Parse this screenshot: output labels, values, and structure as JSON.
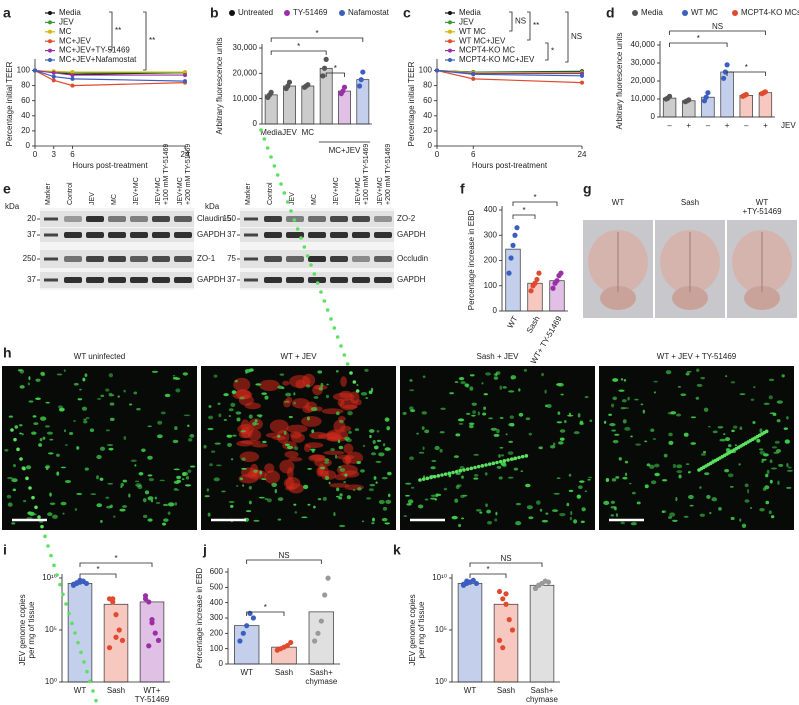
{
  "chart_data": [
    {
      "label": "a",
      "type": "line",
      "x": [
        0,
        3,
        6,
        24
      ],
      "xlim": [
        0,
        24
      ],
      "xticks": [
        0,
        3,
        6,
        24
      ],
      "ylim": [
        0,
        110
      ],
      "yticks": [
        0,
        20,
        40,
        60,
        80,
        100
      ],
      "xlabel": "Hours post-treatment",
      "ylabel": "Percentage initial TEER",
      "series": [
        {
          "name": "Media",
          "color": "#111111",
          "values": [
            100,
            98,
            95,
            97
          ]
        },
        {
          "name": "JEV",
          "color": "#3a9a3a",
          "values": [
            100,
            98,
            97,
            97
          ]
        },
        {
          "name": "MC",
          "color": "#d4b800",
          "values": [
            100,
            99,
            98,
            98
          ]
        },
        {
          "name": "MC+JEV",
          "color": "#e04a2f",
          "values": [
            100,
            87,
            80,
            84
          ]
        },
        {
          "name": "MC+JEV+TY-51469",
          "color": "#9b2fa8",
          "values": [
            100,
            97,
            94,
            94
          ]
        },
        {
          "name": "MC+JEV+Nafamostat",
          "color": "#3b5fc0",
          "values": [
            100,
            92,
            89,
            86
          ]
        }
      ],
      "annotations": [
        "**",
        "**"
      ]
    },
    {
      "label": "b",
      "type": "bar",
      "categories": [
        "Media",
        "JEV",
        "MC",
        null,
        null,
        null
      ],
      "group_label": "MC+JEV",
      "values": [
        11500,
        15000,
        15000,
        22000,
        13000,
        17500
      ],
      "points": [
        [
          10500,
          11500,
          12500
        ],
        [
          14000,
          15000,
          16500
        ],
        [
          14500,
          15000,
          15500
        ],
        [
          19000,
          22000,
          25500
        ],
        [
          12000,
          13000,
          14500
        ],
        [
          15000,
          17500,
          20500
        ]
      ],
      "colors": [
        "#555555",
        "#555555",
        "#555555",
        "#555555",
        "#9b2fa8",
        "#3b5fc0"
      ],
      "ylim": [
        0,
        30000
      ],
      "yticks": [
        0,
        {
          "value": 10000,
          "label": "10,000"
        },
        {
          "value": 20000,
          "label": "20,000"
        },
        {
          "value": 30000,
          "label": "30,000"
        }
      ],
      "ylabel": "Arbitrary fluorescence units",
      "legend": [
        {
          "name": "Untreated",
          "color": "#111111"
        },
        {
          "name": "TY-51469",
          "color": "#9b2fa8"
        },
        {
          "name": "Nafamostat",
          "color": "#3b5fc0"
        }
      ],
      "annotations": [
        "*",
        "*",
        "*"
      ]
    },
    {
      "label": "c",
      "type": "line",
      "x": [
        0,
        6,
        24
      ],
      "xlim": [
        0,
        24
      ],
      "xticks": [
        0,
        6,
        24
      ],
      "ylim": [
        0,
        110
      ],
      "yticks": [
        0,
        20,
        40,
        60,
        80,
        100
      ],
      "xlabel": "Hours post-treatment",
      "ylabel": "Percentage initial TEER",
      "series": [
        {
          "name": "Media",
          "color": "#111111",
          "values": [
            100,
            98,
            99
          ]
        },
        {
          "name": "JEV",
          "color": "#3a9a3a",
          "values": [
            100,
            98,
            98
          ]
        },
        {
          "name": "WT MC",
          "color": "#d4b800",
          "values": [
            100,
            97,
            97
          ]
        },
        {
          "name": "WT MC+JEV",
          "color": "#e04a2f",
          "values": [
            100,
            89,
            84
          ]
        },
        {
          "name": "MCPT4-KO MC",
          "color": "#9b2fa8",
          "values": [
            100,
            96,
            96
          ]
        },
        {
          "name": "MCPT4-KO MC+JEV",
          "color": "#3b5fc0",
          "values": [
            100,
            95,
            93
          ]
        }
      ],
      "annotations": [
        "NS",
        "**",
        "NS",
        "*"
      ]
    },
    {
      "label": "d",
      "type": "bar",
      "categories": [
        "–",
        "+",
        "–",
        "+",
        "–",
        "+"
      ],
      "x_label": "JEV",
      "values": [
        10500,
        9000,
        11000,
        25000,
        12000,
        13500
      ],
      "points": [
        [
          10000,
          10500,
          11500
        ],
        [
          8500,
          9000,
          9500
        ],
        [
          9000,
          11000,
          13500
        ],
        [
          21500,
          25000,
          29000
        ],
        [
          11500,
          12000,
          12500
        ],
        [
          13000,
          13500,
          14000
        ]
      ],
      "colors": [
        "#555555",
        "#555555",
        "#3b5fc0",
        "#3b5fc0",
        "#e04a2f",
        "#e04a2f"
      ],
      "ylim": [
        0,
        40000
      ],
      "yticks": [
        0,
        {
          "value": 10000,
          "label": "10,000"
        },
        {
          "value": 20000,
          "label": "20,000"
        },
        {
          "value": 30000,
          "label": "30,000"
        },
        {
          "value": 40000,
          "label": "40,000"
        }
      ],
      "ylabel": "Arbitrary fluorescence units",
      "legend": [
        {
          "name": "Media",
          "color": "#555555"
        },
        {
          "name": "WT MC",
          "color": "#3b5fc0"
        },
        {
          "name": "MCPT4-KO MCs",
          "color": "#e04a2f"
        }
      ],
      "annotations": [
        "NS",
        "*",
        "*"
      ]
    },
    {
      "label": "f",
      "type": "bar",
      "categories": [
        "WT",
        "Sash",
        "WT+ TY-51469"
      ],
      "values": [
        245,
        110,
        120
      ],
      "points": [
        [
          150,
          210,
          260,
          300,
          330
        ],
        [
          80,
          100,
          110,
          125,
          150
        ],
        [
          90,
          110,
          120,
          140,
          150
        ]
      ],
      "colors": [
        "#3b5fc0",
        "#e04a2f",
        "#9b2fa8"
      ],
      "ylim": [
        0,
        400
      ],
      "yticks": [
        0,
        100,
        200,
        300,
        400
      ],
      "ylabel": "Percentage increase in EBD",
      "annotations": [
        "*",
        "*"
      ]
    },
    {
      "label": "i",
      "type": "bar",
      "log": true,
      "categories": [
        "WT",
        "Sash",
        "WT+ TY-51469"
      ],
      "values": [
        3000000000,
        30000000,
        50000000
      ],
      "points": [
        [
          2000000000,
          3000000000,
          4000000000,
          5000000000,
          3000000000,
          2500000000,
          3500000000,
          6000000000
        ],
        [
          100000000,
          50000000,
          3000000,
          100000,
          10000,
          2000,
          100000000,
          20000
        ],
        [
          100000000,
          50000000,
          1000000,
          50000,
          10000,
          200000000,
          3000,
          500000
        ]
      ],
      "colors": [
        "#3b5fc0",
        "#e04a2f",
        "#9b2fa8"
      ],
      "ylim": [
        1,
        10000000000
      ],
      "yticks": [
        {
          "value": 1,
          "label": "10⁰"
        },
        {
          "value": 100000,
          "label": "10⁵"
        },
        {
          "value": 10000000000,
          "label": "10¹⁰"
        }
      ],
      "ylabel": "JEV genome copies per mg of tissue",
      "annotations": [
        "*",
        "*"
      ]
    },
    {
      "label": "j",
      "type": "bar",
      "categories": [
        "WT",
        "Sash",
        "Sash+ chymase"
      ],
      "values": [
        250,
        110,
        340
      ],
      "points": [
        [
          150,
          200,
          250,
          330,
          300
        ],
        [
          90,
          100,
          110,
          120,
          140
        ],
        [
          150,
          200,
          280,
          450,
          560
        ]
      ],
      "colors": [
        "#3b5fc0",
        "#e04a2f",
        "#999999"
      ],
      "ylim": [
        0,
        600
      ],
      "yticks": [
        0,
        100,
        200,
        300,
        400,
        500,
        600
      ],
      "ylabel": "Percentage increase in EBD",
      "annotations": [
        "NS",
        "*"
      ]
    },
    {
      "label": "k",
      "type": "bar",
      "log": true,
      "categories": [
        "WT",
        "Sash",
        "Sash+ chymase"
      ],
      "values": [
        3000000000,
        30000000,
        2000000000
      ],
      "points": [
        [
          2000000000,
          3000000000,
          4000000000,
          6000000000,
          3000000000,
          2500000000,
          5000000000,
          4000000000
        ],
        [
          500000000,
          100000000,
          30000000,
          1000000,
          100000,
          10000,
          2000,
          300000000
        ],
        [
          1000000000,
          2000000000,
          3000000000,
          5000000000,
          4000000000,
          1000000000,
          2000000000
        ]
      ],
      "colors": [
        "#3b5fc0",
        "#e04a2f",
        "#999999"
      ],
      "ylim": [
        1,
        10000000000
      ],
      "yticks": [
        {
          "value": 1,
          "label": "10⁰"
        },
        {
          "value": 100000,
          "label": "10⁵"
        },
        {
          "value": 10000000000,
          "label": "10¹⁰"
        }
      ],
      "ylabel": "JEV genome copies per mg of tissue",
      "annotations": [
        "NS",
        "*"
      ]
    }
  ],
  "blots": {
    "label": "e",
    "unit": "kDa",
    "lanes": [
      "Marker",
      "Control",
      "JEV",
      "MC",
      "JEV+MC",
      "JEV+MC +100 mM TY-51469",
      "JEV+MC +200 mM TY-51469"
    ],
    "left": {
      "markers": [
        20,
        37,
        250,
        37
      ],
      "bands": [
        "Claudin-5",
        "GAPDH",
        "ZO-1",
        "GAPDH"
      ]
    },
    "right": {
      "markers": [
        150,
        37,
        75,
        37
      ],
      "bands": [
        "ZO-2",
        "GAPDH",
        "Occludin",
        "GAPDH"
      ]
    }
  },
  "brain_images": {
    "label": "g",
    "panels": [
      "WT",
      "Sash",
      "WT +TY-51469"
    ],
    "colors": [
      "#4a5fb0",
      "#c0392b",
      "#8e44ad"
    ]
  },
  "micrographs": {
    "label": "h",
    "panels": [
      "WT uninfected",
      "WT + JEV",
      "Sash + JEV",
      "WT + JEV + TY-51469"
    ]
  }
}
